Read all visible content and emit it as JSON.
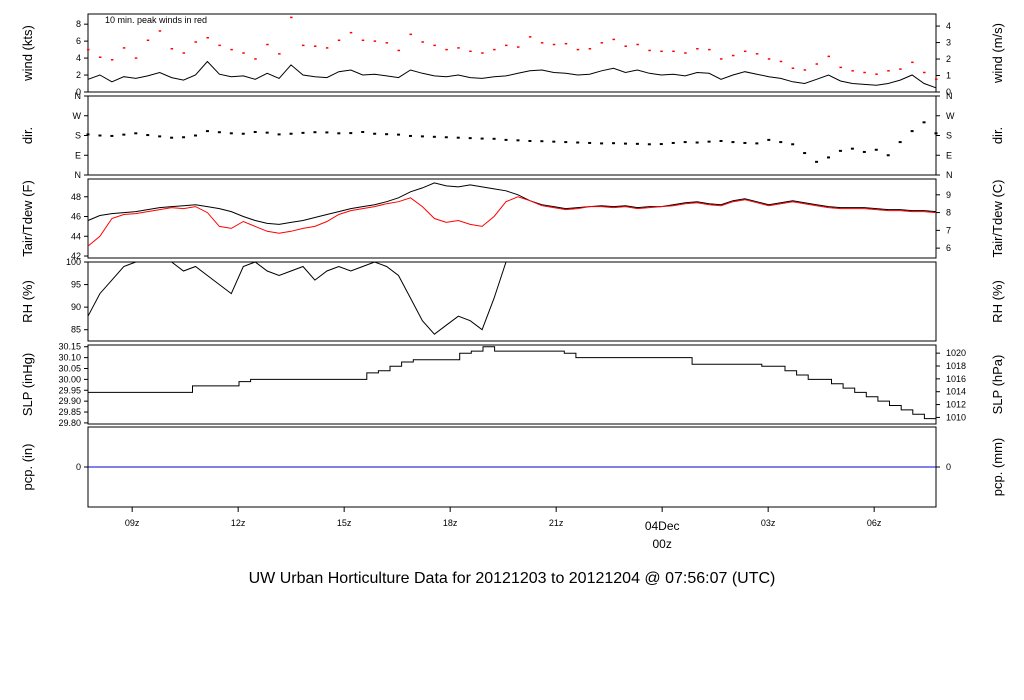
{
  "annotation": "10 min. peak winds in red",
  "footer": "UW Urban Horticulture Data for 20121203  to  20121204 @ 07:56:07  (UTC)",
  "colors": {
    "primary": "#000000",
    "secondary": "#ff0000",
    "precip": "#0000cc",
    "footer": "#0000cc",
    "date_label": "#cc0000"
  },
  "chart_data": [
    {
      "type": "line",
      "panel": "wind",
      "ylabel": "wind (kts)",
      "ylabel_right": "wind (m/s)",
      "ylim": [
        0,
        9.2
      ],
      "yticks": [
        0,
        2,
        4,
        6,
        8
      ],
      "yticks_right": [
        0,
        1,
        2,
        3,
        4
      ],
      "series": [
        {
          "values": [
            1.5,
            2.0,
            1.2,
            1.8,
            1.6,
            1.9,
            2.3,
            1.7,
            1.4,
            2.0,
            3.6,
            2.1,
            1.8,
            1.9,
            1.5,
            2.2,
            1.6,
            3.2,
            2.0,
            1.8,
            1.7,
            2.4,
            2.6,
            2.0,
            2.1,
            1.9,
            1.7,
            2.6,
            2.2,
            1.9,
            1.8,
            2.0,
            1.7,
            1.6,
            1.8,
            1.9,
            2.2,
            2.5,
            2.6,
            2.3,
            2.2,
            2.0,
            2.1,
            2.5,
            2.8,
            2.3,
            2.6,
            2.2,
            2.0,
            2.1,
            1.9,
            2.3,
            2.2,
            1.5,
            2.0,
            2.4,
            2.1,
            1.8,
            1.6,
            1.2,
            1.0,
            1.5,
            2.0,
            1.3,
            1.0,
            0.9,
            0.8,
            1.0,
            1.4,
            2.0,
            1.0,
            0.5
          ]
        },
        {
          "values": [
            5.0,
            4.1,
            3.8,
            5.2,
            4.0,
            6.1,
            7.2,
            5.1,
            4.6,
            5.9,
            6.4,
            5.5,
            5.0,
            4.6,
            3.9,
            5.6,
            4.5,
            8.8,
            5.5,
            5.4,
            5.2,
            6.1,
            7.0,
            6.1,
            6.0,
            5.8,
            4.9,
            6.8,
            5.9,
            5.5,
            5.0,
            5.2,
            4.8,
            4.6,
            5.0,
            5.5,
            5.3,
            6.5,
            5.8,
            5.6,
            5.7,
            5.0,
            5.1,
            5.8,
            6.2,
            5.4,
            5.6,
            4.9,
            4.8,
            4.8,
            4.6,
            5.1,
            5.0,
            3.9,
            4.3,
            4.8,
            4.5,
            3.9,
            3.6,
            2.8,
            2.6,
            3.3,
            4.2,
            2.9,
            2.5,
            2.3,
            2.1,
            2.5,
            2.7,
            3.5,
            2.3,
            1.5
          ]
        }
      ]
    },
    {
      "type": "scatter",
      "panel": "dir",
      "ylabel": "dir.",
      "ylabel_right": "dir.",
      "ytick_labels": [
        "N",
        "E",
        "S",
        "W",
        "N"
      ],
      "ylim": [
        0,
        360
      ],
      "series": [
        {
          "values": [
            185,
            180,
            178,
            184,
            190,
            182,
            176,
            170,
            172,
            180,
            200,
            195,
            190,
            188,
            196,
            193,
            185,
            188,
            192,
            195,
            194,
            190,
            191,
            196,
            188,
            186,
            184,
            178,
            176,
            174,
            172,
            170,
            168,
            166,
            165,
            160,
            158,
            155,
            154,
            152,
            150,
            148,
            146,
            144,
            145,
            143,
            142,
            140,
            141,
            146,
            150,
            148,
            152,
            155,
            150,
            146,
            144,
            160,
            150,
            140,
            100,
            60,
            80,
            110,
            120,
            105,
            115,
            90,
            150,
            200,
            240,
            190
          ]
        }
      ]
    },
    {
      "type": "line",
      "panel": "temperature",
      "ylabel": "Tair/Tdew (F)",
      "ylabel_right": "Tair/Tdew (C)",
      "ylim": [
        41.8,
        49.8
      ],
      "yticks": [
        42,
        44,
        46,
        48
      ],
      "yticks_right": [
        6,
        7,
        8,
        9
      ],
      "series": [
        {
          "values": [
            45.6,
            46.1,
            46.3,
            46.4,
            46.5,
            46.7,
            46.9,
            47.0,
            47.1,
            47.2,
            47.0,
            46.8,
            46.5,
            46.0,
            45.6,
            45.3,
            45.2,
            45.4,
            45.6,
            45.9,
            46.2,
            46.5,
            46.8,
            47.0,
            47.2,
            47.5,
            47.9,
            48.5,
            48.9,
            49.4,
            49.1,
            49.0,
            49.2,
            49.0,
            48.8,
            48.6,
            48.2,
            47.6,
            47.2,
            47.0,
            46.8,
            46.9,
            47.0,
            47.1,
            47.0,
            47.1,
            46.9,
            47.0,
            47.0,
            47.2,
            47.4,
            47.5,
            47.3,
            47.2,
            47.6,
            47.8,
            47.5,
            47.2,
            47.4,
            47.6,
            47.4,
            47.2,
            47.0,
            46.9,
            46.9,
            46.9,
            46.8,
            46.7,
            46.7,
            46.6,
            46.6,
            46.5
          ]
        },
        {
          "values": [
            43.0,
            44.0,
            45.8,
            46.2,
            46.3,
            46.5,
            46.7,
            46.9,
            46.8,
            47.0,
            46.4,
            45.0,
            44.8,
            45.5,
            45.0,
            44.5,
            44.3,
            44.5,
            44.8,
            45.0,
            45.5,
            46.2,
            46.6,
            46.8,
            47.0,
            47.3,
            47.5,
            47.9,
            47.0,
            45.8,
            45.4,
            45.6,
            45.2,
            45.0,
            46.0,
            47.5,
            48.0,
            47.6,
            47.1,
            46.9,
            46.7,
            46.8,
            47.0,
            47.0,
            46.9,
            47.0,
            46.8,
            46.9,
            47.0,
            47.1,
            47.3,
            47.4,
            47.2,
            47.1,
            47.5,
            47.7,
            47.4,
            47.1,
            47.3,
            47.5,
            47.3,
            47.1,
            46.9,
            46.8,
            46.8,
            46.8,
            46.7,
            46.6,
            46.6,
            46.5,
            46.5,
            46.4
          ]
        }
      ]
    },
    {
      "type": "line",
      "panel": "rh",
      "ylabel": "RH (%)",
      "ylabel_right": "RH (%)",
      "ylim": [
        82.5,
        100
      ],
      "yticks": [
        85,
        90,
        95,
        100
      ],
      "series": [
        {
          "values": [
            88,
            93,
            96,
            99,
            100,
            100,
            100,
            100,
            98,
            99,
            97,
            95,
            93,
            99,
            100,
            98,
            97,
            98,
            99,
            96,
            98,
            99,
            98,
            99,
            100,
            99,
            97,
            92,
            87,
            84,
            86,
            88,
            87,
            85,
            92,
            100,
            100,
            100,
            100,
            100,
            100,
            100,
            100,
            100,
            100,
            100,
            100,
            100,
            100,
            100,
            100,
            100,
            100,
            100,
            100,
            100,
            100,
            100,
            100,
            100,
            100,
            100,
            100,
            100,
            100,
            100,
            100,
            100,
            100,
            100,
            100,
            100
          ]
        }
      ]
    },
    {
      "type": "line",
      "panel": "slp",
      "ylabel": "SLP (inHg)",
      "ylabel_right": "SLP (hPa)",
      "ylim": [
        29.795,
        30.158
      ],
      "yticks": [
        29.8,
        29.85,
        29.9,
        29.95,
        30.0,
        30.05,
        30.1,
        30.15
      ],
      "ytick_labels": [
        "29.80",
        "29.85",
        "29.90",
        "29.95",
        "30.00",
        "30.05",
        "30.10",
        "30.15"
      ],
      "yticks_right": [
        1010,
        1012,
        1014,
        1016,
        1018,
        1020
      ],
      "series": [
        {
          "values": [
            29.94,
            29.94,
            29.94,
            29.94,
            29.94,
            29.94,
            29.94,
            29.94,
            29.94,
            29.97,
            29.97,
            29.97,
            29.97,
            29.99,
            30.0,
            30.0,
            30.0,
            30.0,
            30.0,
            30.0,
            30.0,
            30.0,
            30.0,
            30.0,
            30.03,
            30.04,
            30.06,
            30.08,
            30.09,
            30.09,
            30.09,
            30.09,
            30.12,
            30.13,
            30.15,
            30.13,
            30.13,
            30.13,
            30.13,
            30.13,
            30.13,
            30.12,
            30.1,
            30.1,
            30.1,
            30.1,
            30.1,
            30.1,
            30.1,
            30.1,
            30.1,
            30.1,
            30.07,
            30.07,
            30.07,
            30.07,
            30.07,
            30.07,
            30.06,
            30.06,
            30.04,
            30.02,
            30.0,
            30.0,
            29.98,
            29.96,
            29.94,
            29.92,
            29.9,
            29.88,
            29.86,
            29.84,
            29.82,
            29.8
          ]
        }
      ]
    },
    {
      "type": "line",
      "panel": "precip",
      "ylabel": "pcp. (in)",
      "ylabel_right": "pcp. (mm)",
      "ylim": [
        -1,
        1
      ],
      "yticks": [
        0
      ],
      "yticks_right": [
        0
      ],
      "series": [
        {
          "values": [
            0,
            0
          ]
        }
      ]
    }
  ],
  "xaxis": {
    "ticks": [
      {
        "label": "09z",
        "hours": 1.25
      },
      {
        "label": "12z",
        "hours": 4.25
      },
      {
        "label": "15z",
        "hours": 7.25
      },
      {
        "label": "18z",
        "hours": 10.25
      },
      {
        "label": "21z",
        "hours": 13.25
      },
      {
        "label": "03z",
        "hours": 19.25
      },
      {
        "label": "06z",
        "hours": 22.25
      }
    ],
    "date_label": "04Dec",
    "date_hour_label": "00z",
    "date_hours": 16.25,
    "xlim_hours": [
      0,
      24
    ]
  }
}
